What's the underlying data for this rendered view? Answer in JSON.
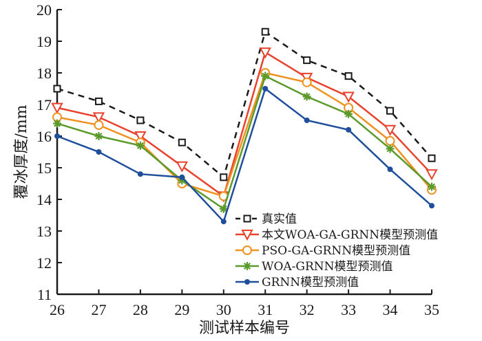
{
  "chart_data": {
    "type": "line",
    "title": "",
    "xlabel": "测试样本编号",
    "ylabel": "覆冰厚度/mm",
    "xlim": [
      26,
      35
    ],
    "ylim": [
      11,
      20
    ],
    "x": [
      26,
      27,
      28,
      29,
      30,
      31,
      32,
      33,
      34,
      35
    ],
    "xticks": [
      "26",
      "27",
      "28",
      "29",
      "30",
      "31",
      "32",
      "33",
      "34",
      "35"
    ],
    "yticks": [
      "11",
      "12",
      "13",
      "14",
      "15",
      "16",
      "17",
      "18",
      "19",
      "20"
    ],
    "grid": false,
    "legend_position": "bottom-right",
    "series": [
      {
        "name": "真实值",
        "color": "#1a1a1a",
        "marker": "square",
        "dash": true,
        "values": [
          17.5,
          17.1,
          16.5,
          15.8,
          14.7,
          19.3,
          18.4,
          17.9,
          16.8,
          15.3
        ]
      },
      {
        "name": "本文WOA-GA-GRNN模型预测值",
        "color": "#e8412c",
        "marker": "triangle-down",
        "dash": false,
        "values": [
          16.9,
          16.6,
          16.0,
          15.05,
          14.1,
          18.65,
          17.85,
          17.25,
          16.2,
          14.8
        ]
      },
      {
        "name": "PSO-GA-GRNN模型预测值",
        "color": "#f0901e",
        "marker": "circle-open",
        "dash": false,
        "values": [
          16.6,
          16.35,
          15.8,
          14.5,
          14.1,
          18.0,
          17.7,
          16.9,
          15.85,
          14.3
        ]
      },
      {
        "name": "WOA-GRNN模型预测值",
        "color": "#5a9a2a",
        "marker": "asterisk",
        "dash": false,
        "values": [
          16.4,
          16.0,
          15.7,
          14.6,
          13.7,
          17.9,
          17.25,
          16.7,
          15.6,
          14.4
        ]
      },
      {
        "name": "GRNN模型预测值",
        "color": "#1f4e9c",
        "marker": "dot",
        "dash": false,
        "values": [
          16.0,
          15.5,
          14.8,
          14.7,
          13.3,
          17.5,
          16.5,
          16.2,
          14.95,
          13.8
        ]
      }
    ]
  }
}
